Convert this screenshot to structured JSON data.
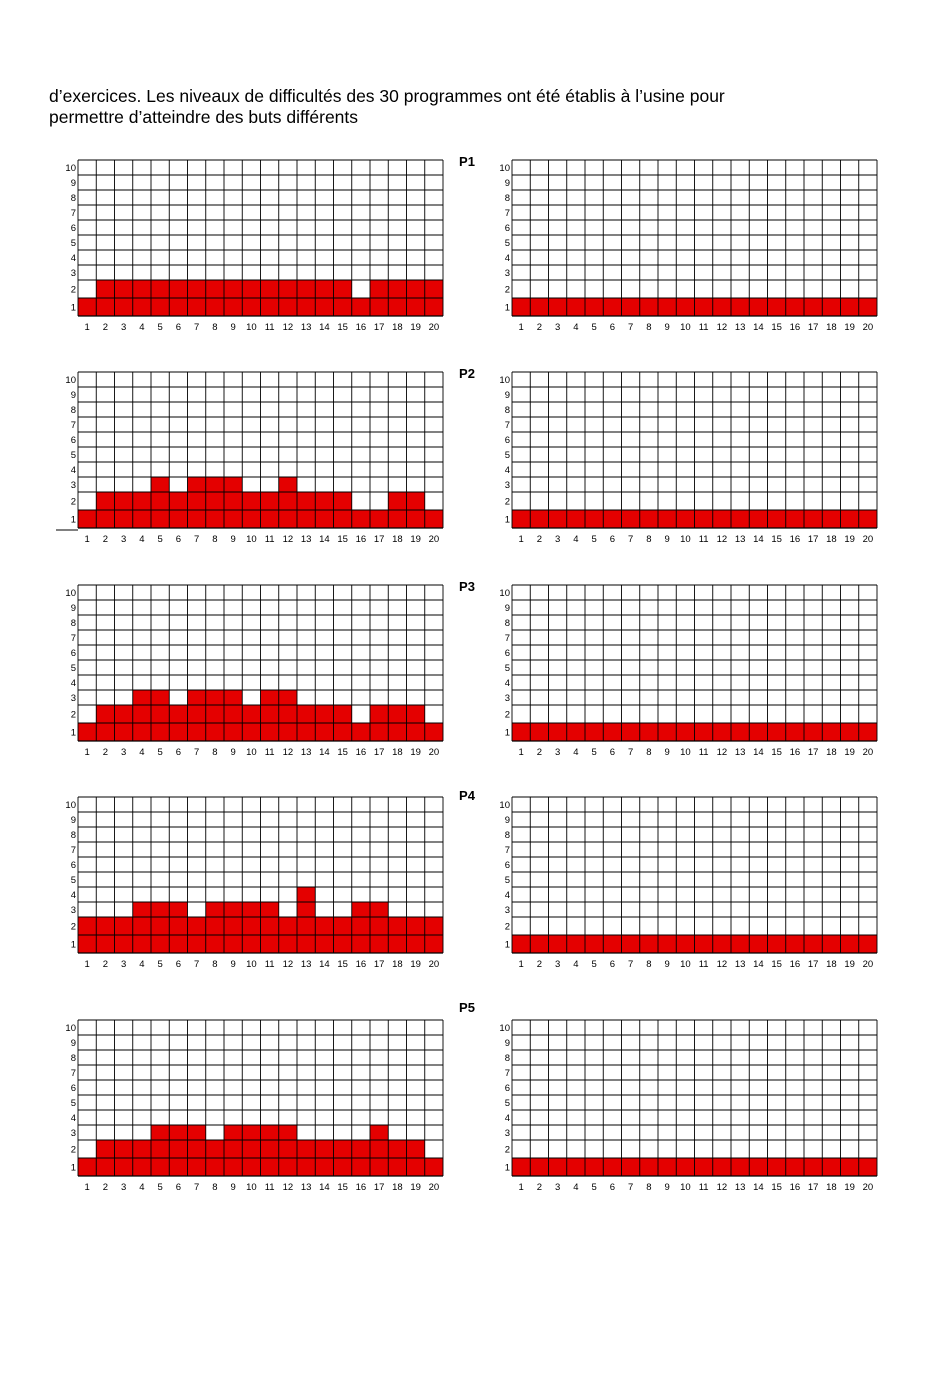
{
  "intro": {
    "line1": "d’exercices. Les niveaux de difficultés des 30 programmes ont été établis à l’usine pour",
    "line2": "permettre d’atteindre des buts différents"
  },
  "colors": {
    "fill": "#e40000",
    "grid": "#000000"
  },
  "chart_data": [
    {
      "type": "bar",
      "program": "P1",
      "side": "left",
      "categories": [
        1,
        2,
        3,
        4,
        5,
        6,
        7,
        8,
        9,
        10,
        11,
        12,
        13,
        14,
        15,
        16,
        17,
        18,
        19,
        20
      ],
      "values": [
        1,
        2,
        2,
        2,
        2,
        2,
        2,
        2,
        2,
        2,
        2,
        2,
        2,
        2,
        2,
        1,
        2,
        2,
        2,
        2
      ],
      "ylim": [
        0,
        10
      ]
    },
    {
      "type": "bar",
      "program": "P1",
      "side": "right",
      "categories": [
        1,
        2,
        3,
        4,
        5,
        6,
        7,
        8,
        9,
        10,
        11,
        12,
        13,
        14,
        15,
        16,
        17,
        18,
        19,
        20
      ],
      "values": [
        1,
        1,
        1,
        1,
        1,
        1,
        1,
        1,
        1,
        1,
        1,
        1,
        1,
        1,
        1,
        1,
        1,
        1,
        1,
        1
      ],
      "ylim": [
        0,
        10
      ]
    },
    {
      "type": "bar",
      "program": "P2",
      "side": "left",
      "categories": [
        1,
        2,
        3,
        4,
        5,
        6,
        7,
        8,
        9,
        10,
        11,
        12,
        13,
        14,
        15,
        16,
        17,
        18,
        19,
        20
      ],
      "values": [
        1,
        2,
        2,
        2,
        3,
        2,
        3,
        3,
        3,
        2,
        2,
        3,
        2,
        2,
        2,
        1,
        1,
        2,
        2,
        1
      ],
      "ylim": [
        0,
        10
      ]
    },
    {
      "type": "bar",
      "program": "P2",
      "side": "right",
      "categories": [
        1,
        2,
        3,
        4,
        5,
        6,
        7,
        8,
        9,
        10,
        11,
        12,
        13,
        14,
        15,
        16,
        17,
        18,
        19,
        20
      ],
      "values": [
        1,
        1,
        1,
        1,
        1,
        1,
        1,
        1,
        1,
        1,
        1,
        1,
        1,
        1,
        1,
        1,
        1,
        1,
        1,
        1
      ],
      "ylim": [
        0,
        10
      ]
    },
    {
      "type": "bar",
      "program": "P3",
      "side": "left",
      "categories": [
        1,
        2,
        3,
        4,
        5,
        6,
        7,
        8,
        9,
        10,
        11,
        12,
        13,
        14,
        15,
        16,
        17,
        18,
        19,
        20
      ],
      "values": [
        1,
        2,
        2,
        3,
        3,
        2,
        3,
        3,
        3,
        2,
        3,
        3,
        2,
        2,
        2,
        1,
        2,
        2,
        2,
        1
      ],
      "ylim": [
        0,
        10
      ]
    },
    {
      "type": "bar",
      "program": "P3",
      "side": "right",
      "categories": [
        1,
        2,
        3,
        4,
        5,
        6,
        7,
        8,
        9,
        10,
        11,
        12,
        13,
        14,
        15,
        16,
        17,
        18,
        19,
        20
      ],
      "values": [
        1,
        1,
        1,
        1,
        1,
        1,
        1,
        1,
        1,
        1,
        1,
        1,
        1,
        1,
        1,
        1,
        1,
        1,
        1,
        1
      ],
      "ylim": [
        0,
        10
      ]
    },
    {
      "type": "bar",
      "program": "P4",
      "side": "left",
      "categories": [
        1,
        2,
        3,
        4,
        5,
        6,
        7,
        8,
        9,
        10,
        11,
        12,
        13,
        14,
        15,
        16,
        17,
        18,
        19,
        20
      ],
      "values": [
        2,
        2,
        2,
        3,
        3,
        3,
        2,
        3,
        3,
        3,
        3,
        2,
        4,
        2,
        2,
        3,
        3,
        2,
        2,
        2
      ],
      "ylim": [
        0,
        10
      ]
    },
    {
      "type": "bar",
      "program": "P4",
      "side": "right",
      "categories": [
        1,
        2,
        3,
        4,
        5,
        6,
        7,
        8,
        9,
        10,
        11,
        12,
        13,
        14,
        15,
        16,
        17,
        18,
        19,
        20
      ],
      "values": [
        1,
        1,
        1,
        1,
        1,
        1,
        1,
        1,
        1,
        1,
        1,
        1,
        1,
        1,
        1,
        1,
        1,
        1,
        1,
        1
      ],
      "ylim": [
        0,
        10
      ]
    },
    {
      "type": "bar",
      "program": "P5",
      "side": "left",
      "categories": [
        1,
        2,
        3,
        4,
        5,
        6,
        7,
        8,
        9,
        10,
        11,
        12,
        13,
        14,
        15,
        16,
        17,
        18,
        19,
        20
      ],
      "values": [
        1,
        2,
        2,
        2,
        3,
        3,
        3,
        2,
        3,
        3,
        3,
        3,
        2,
        2,
        2,
        2,
        3,
        2,
        2,
        1
      ],
      "ylim": [
        0,
        10
      ]
    },
    {
      "type": "bar",
      "program": "P5",
      "side": "right",
      "categories": [
        1,
        2,
        3,
        4,
        5,
        6,
        7,
        8,
        9,
        10,
        11,
        12,
        13,
        14,
        15,
        16,
        17,
        18,
        19,
        20
      ],
      "values": [
        1,
        1,
        1,
        1,
        1,
        1,
        1,
        1,
        1,
        1,
        1,
        1,
        1,
        1,
        1,
        1,
        1,
        1,
        1,
        1
      ],
      "ylim": [
        0,
        10
      ]
    }
  ]
}
